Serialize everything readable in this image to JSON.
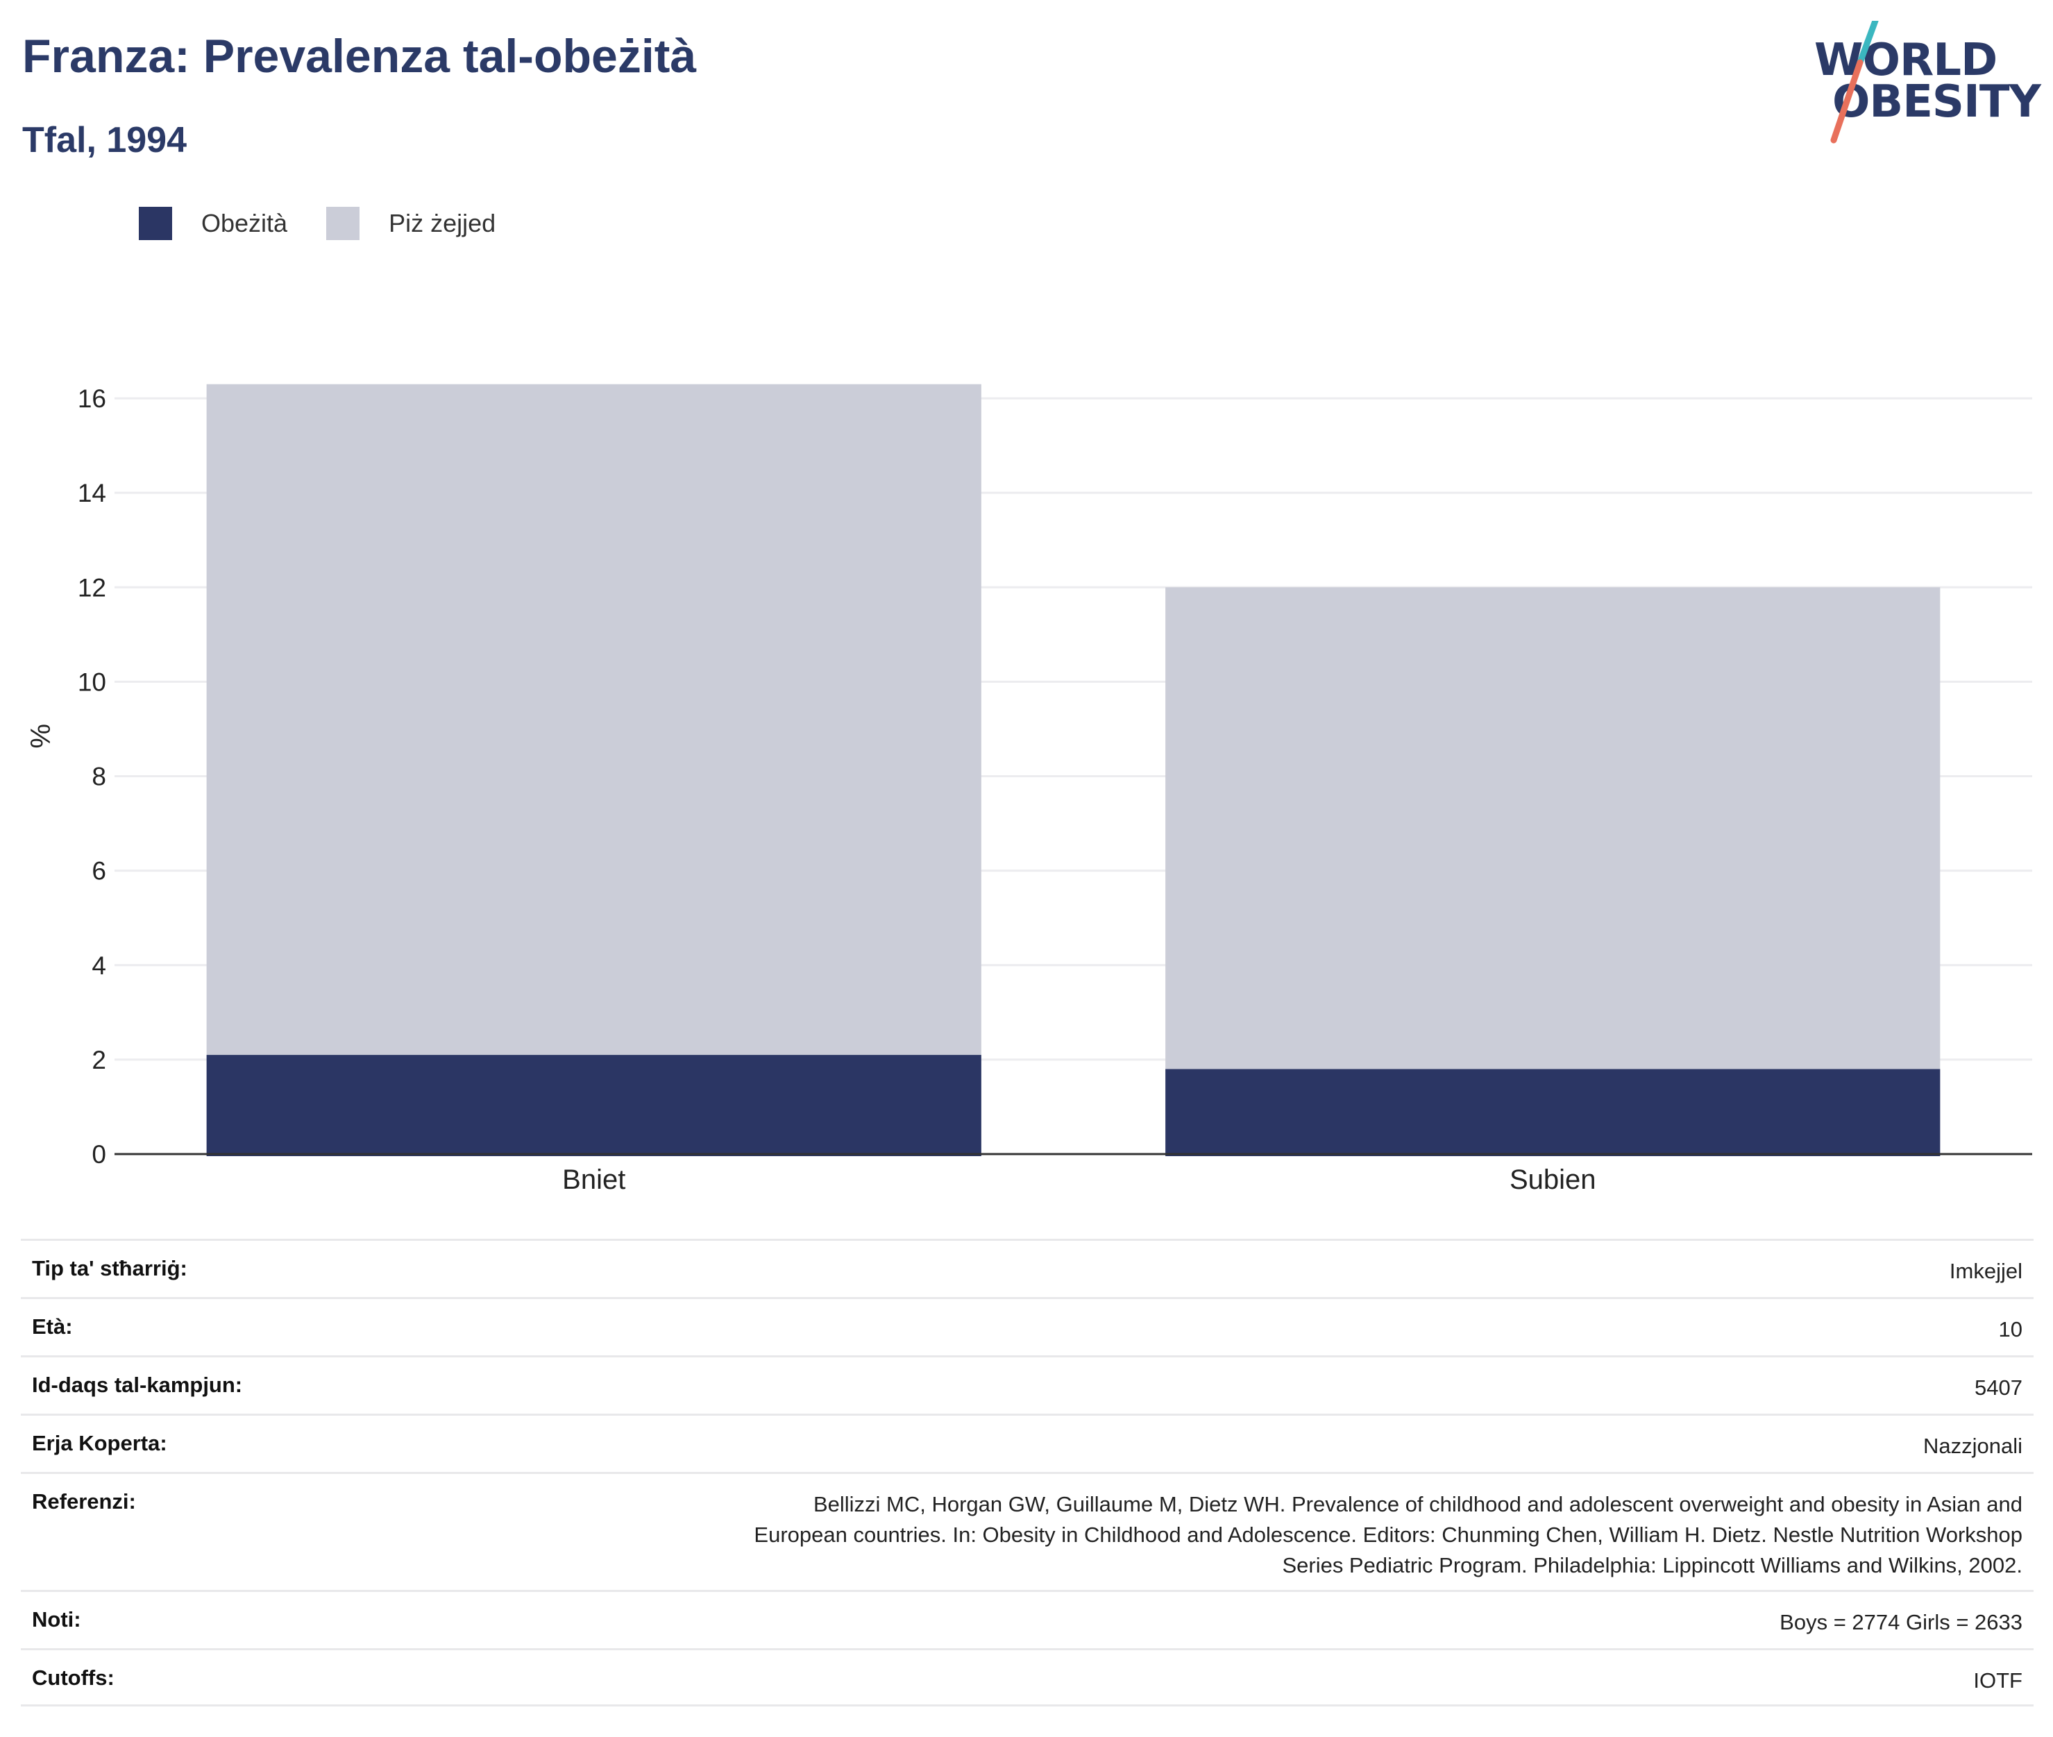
{
  "title": "Franza: Prevalenza tal-obeżità",
  "subtitle": "Tfal, 1994",
  "logo": {
    "line1": "WORLD",
    "line2": "OBESITY"
  },
  "colors": {
    "obesity": "#2b3664",
    "overweight": "#cbcdd8",
    "title": "#2b3a67",
    "logo_teal": "#3bb7c0",
    "logo_coral": "#e8705b"
  },
  "legend": [
    {
      "label": "Obeżità",
      "color": "#2b3664"
    },
    {
      "label": "Piż żejjed",
      "color": "#cbcdd8"
    }
  ],
  "chart_data": {
    "type": "bar",
    "stacked": true,
    "categories": [
      "Bniet",
      "Subien"
    ],
    "series": [
      {
        "name": "Obeżità",
        "values": [
          2.1,
          1.8
        ]
      },
      {
        "name": "Piż żejjed",
        "values": [
          14.2,
          10.2
        ]
      }
    ],
    "ylabel": "%",
    "ylim": [
      0,
      16.5
    ],
    "yticks": [
      0,
      2,
      4,
      6,
      8,
      10,
      12,
      14,
      16
    ],
    "grid": true,
    "legend_position": "top-left"
  },
  "info": [
    {
      "label": "Tip ta' stħarriġ:",
      "value": [
        "Imkejjel"
      ]
    },
    {
      "label": "Età:",
      "value": [
        "10"
      ]
    },
    {
      "label": "Id-daqs tal-kampjun:",
      "value": [
        "5407"
      ]
    },
    {
      "label": "Erja Koperta:",
      "value": [
        "Nazzjonali"
      ]
    },
    {
      "label": "Referenzi:",
      "value": [
        "Bellizzi MC, Horgan GW, Guillaume M, Dietz WH. Prevalence of childhood and adolescent overweight and obesity in Asian and",
        "European countries. In: Obesity in Childhood and Adolescence. Editors: Chunming Chen, William H. Dietz. Nestle Nutrition Workshop",
        "Series Pediatric Program. Philadelphia: Lippincott Williams and Wilkins, 2002."
      ]
    },
    {
      "label": "Noti:",
      "value": [
        "Boys = 2774 Girls = 2633"
      ]
    },
    {
      "label": "Cutoffs:",
      "value": [
        "IOTF"
      ]
    }
  ]
}
